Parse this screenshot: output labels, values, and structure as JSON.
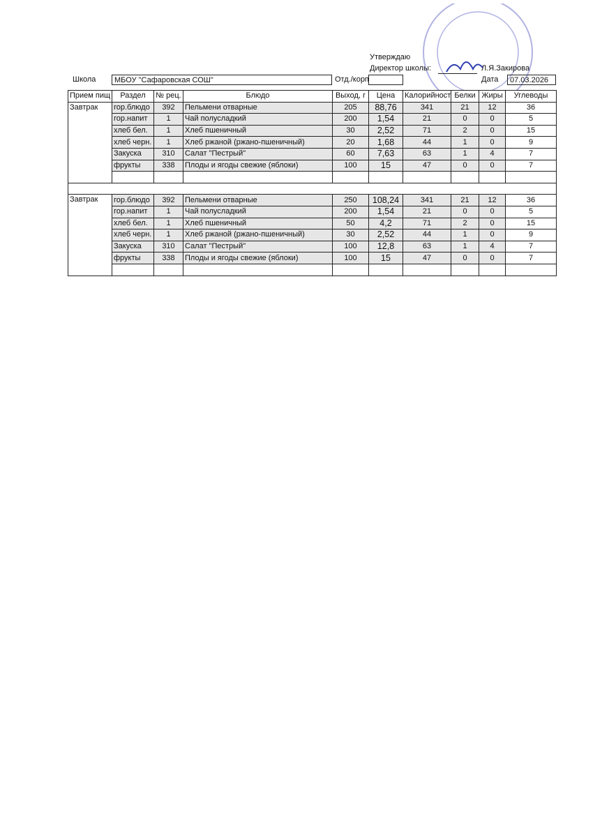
{
  "header": {
    "approve": "Утверждаю",
    "director_label": "Директор школы:",
    "director_name": "Л.Я.Закирова",
    "school_label": "Школа",
    "school": "МБОУ \"Сафаровская СОШ\"",
    "dept_label": "Отд./корп",
    "date_label": "Дата",
    "date": "07.03.2026"
  },
  "table": {
    "columns": [
      "Прием пищ",
      "Раздел",
      "№ рец.",
      "Блюдо",
      "Выход, г",
      "Цена",
      "Калорийност",
      "Белки",
      "Жиры",
      "Углеводы"
    ],
    "blocks": [
      {
        "meal": "Завтрак",
        "rows": [
          [
            "гор.блюдо",
            "392",
            "Пельмени отварные",
            "205",
            "88,76",
            "341",
            "21",
            "12",
            "36"
          ],
          [
            "гор.напит",
            "1",
            "Чай полусладкий",
            "200",
            "1,54",
            "21",
            "0",
            "0",
            "5"
          ],
          [
            "хлеб бел.",
            "1",
            "Хлеб пшеничный",
            "30",
            "2,52",
            "71",
            "2",
            "0",
            "15"
          ],
          [
            "хлеб черн.",
            "1",
            "Хлеб ржаной (ржано-пшеничный)",
            "20",
            "1,68",
            "44",
            "1",
            "0",
            "9"
          ],
          [
            "Закуска",
            "310",
            "Салат \"Пестрый\"",
            "60",
            "7,63",
            "63",
            "1",
            "4",
            "7"
          ],
          [
            "фрукты",
            "338",
            "Плоды и ягоды свежие (яблоки)",
            "100",
            "15",
            "47",
            "0",
            "0",
            "7"
          ]
        ]
      },
      {
        "meal": "Завтрак",
        "rows": [
          [
            "гор.блюдо",
            "392",
            "Пельмени отварные",
            "250",
            "108,24",
            "341",
            "21",
            "12",
            "36"
          ],
          [
            "гор.напит",
            "1",
            "Чай полусладкий",
            "200",
            "1,54",
            "21",
            "0",
            "0",
            "5"
          ],
          [
            "хлеб бел.",
            "1",
            "Хлеб пшеничный",
            "50",
            "4,2",
            "71",
            "2",
            "0",
            "15"
          ],
          [
            "хлеб черн.",
            "1",
            "Хлеб ржаной (ржано-пшеничный)",
            "30",
            "2,52",
            "44",
            "1",
            "0",
            "9"
          ],
          [
            "Закуска",
            "310",
            "Салат \"Пестрый\"",
            "100",
            "12,8",
            "63",
            "1",
            "4",
            "7"
          ],
          [
            "фрукты",
            "338",
            "Плоды и ягоды свежие (яблоки)",
            "100",
            "15",
            "47",
            "0",
            "0",
            "7"
          ]
        ]
      }
    ]
  }
}
